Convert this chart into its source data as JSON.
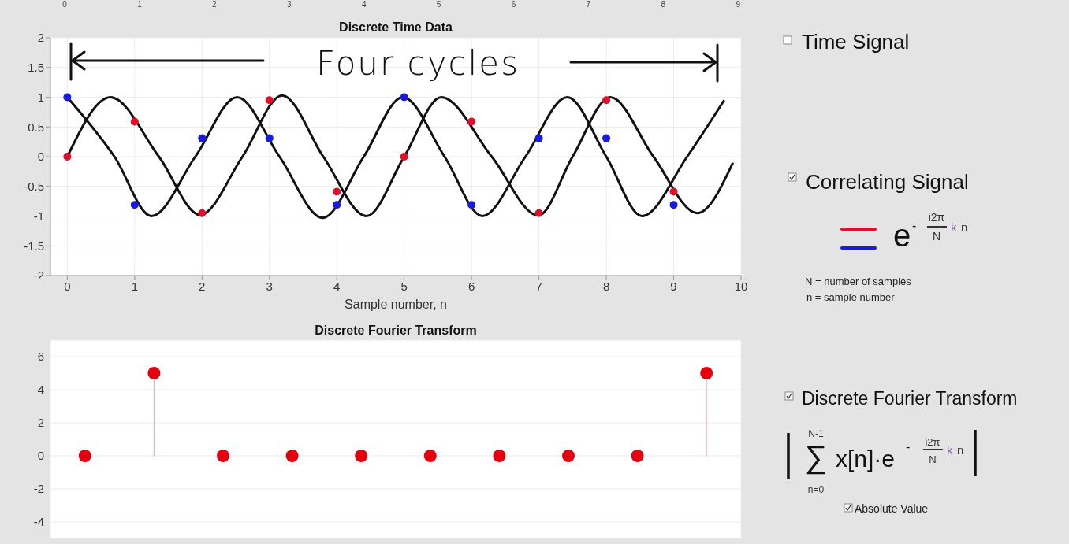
{
  "chart_data": [
    {
      "type": "line",
      "title": "Discrete Time Data",
      "xlabel": "Sample number, n",
      "xlim": [
        -0.25,
        10
      ],
      "xticks": [
        0,
        1,
        2,
        3,
        4,
        5,
        6,
        7,
        8,
        9,
        10
      ],
      "ylim": [
        -2,
        2
      ],
      "yticks": [
        -2,
        -1.5,
        -1,
        -0.5,
        0,
        0.5,
        1,
        1.5,
        2
      ],
      "x2lim": [
        -0.19,
        9.04
      ],
      "x2ticks": [
        0,
        1,
        2,
        3,
        4,
        5,
        6,
        7,
        8,
        9
      ],
      "grid": true,
      "annotations": [
        "Four cycles"
      ],
      "series": [
        {
          "type": "line",
          "color": "#111111",
          "x": [
            0,
            0.64,
            1.36,
            1.97,
            2.6,
            3.19,
            3.8,
            4.44,
            5.0,
            5.55,
            6.3,
            6.99,
            7.5,
            8.06,
            8.7,
            9.35,
            9.88
          ],
          "values": [
            0,
            1,
            0,
            -0.98,
            0,
            1.03,
            0,
            -1,
            0,
            1,
            0,
            -0.99,
            0,
            1,
            0,
            -0.95,
            -0.1
          ]
        },
        {
          "type": "line",
          "color": "#111111",
          "x": [
            0,
            0.7,
            1.25,
            1.9,
            2.52,
            3.15,
            3.79,
            4.4,
            4.98,
            5.6,
            6.16,
            6.8,
            7.42,
            8.0,
            8.53,
            9.2,
            9.75
          ],
          "values": [
            1,
            0,
            -1,
            0,
            1,
            0,
            -1.03,
            0,
            1,
            0,
            -1,
            0,
            1,
            0,
            -1,
            0,
            0.95
          ]
        },
        {
          "type": "scatter",
          "color": "#e0102a",
          "x": [
            0,
            1,
            2,
            3,
            4,
            5,
            6,
            7,
            8,
            9
          ],
          "values": [
            0,
            0.59,
            -0.95,
            0.95,
            -0.59,
            0,
            0.59,
            -0.95,
            0.95,
            -0.59
          ]
        },
        {
          "type": "scatter",
          "color": "#1a1adb",
          "x": [
            0,
            1,
            2,
            3,
            4,
            5,
            6,
            7,
            8,
            9
          ],
          "values": [
            1,
            -0.81,
            0.31,
            0.31,
            -0.81,
            1,
            -0.81,
            0.31,
            0.31,
            -0.81
          ]
        }
      ]
    },
    {
      "type": "lollipop",
      "title": "Discrete Fourier Transform",
      "categories": [
        null,
        null,
        null,
        null,
        null,
        null,
        null,
        null,
        null,
        null
      ],
      "ylim": [
        -5,
        7
      ],
      "yticks": [
        -4,
        -2,
        0,
        2,
        4,
        6
      ],
      "grid": true,
      "tick_labels": "y",
      "series": [
        {
          "color": "#e3000f",
          "values": [
            0,
            5,
            0,
            0,
            0,
            0,
            0,
            0,
            0,
            5
          ]
        }
      ]
    },
    {
      "type": "other",
      "annotations": [
        "Time Signal",
        "Correlating Signal",
        "e",
        "-",
        "i2π",
        "N",
        "k",
        "n",
        "N = number of samples",
        "n = sample number",
        "Discrete Fourier Transform",
        "N-1",
        "∑",
        "n=0",
        "x[n]·e",
        "-",
        "i2π",
        "N",
        "k",
        "n",
        "Absolute Value"
      ]
    }
  ]
}
